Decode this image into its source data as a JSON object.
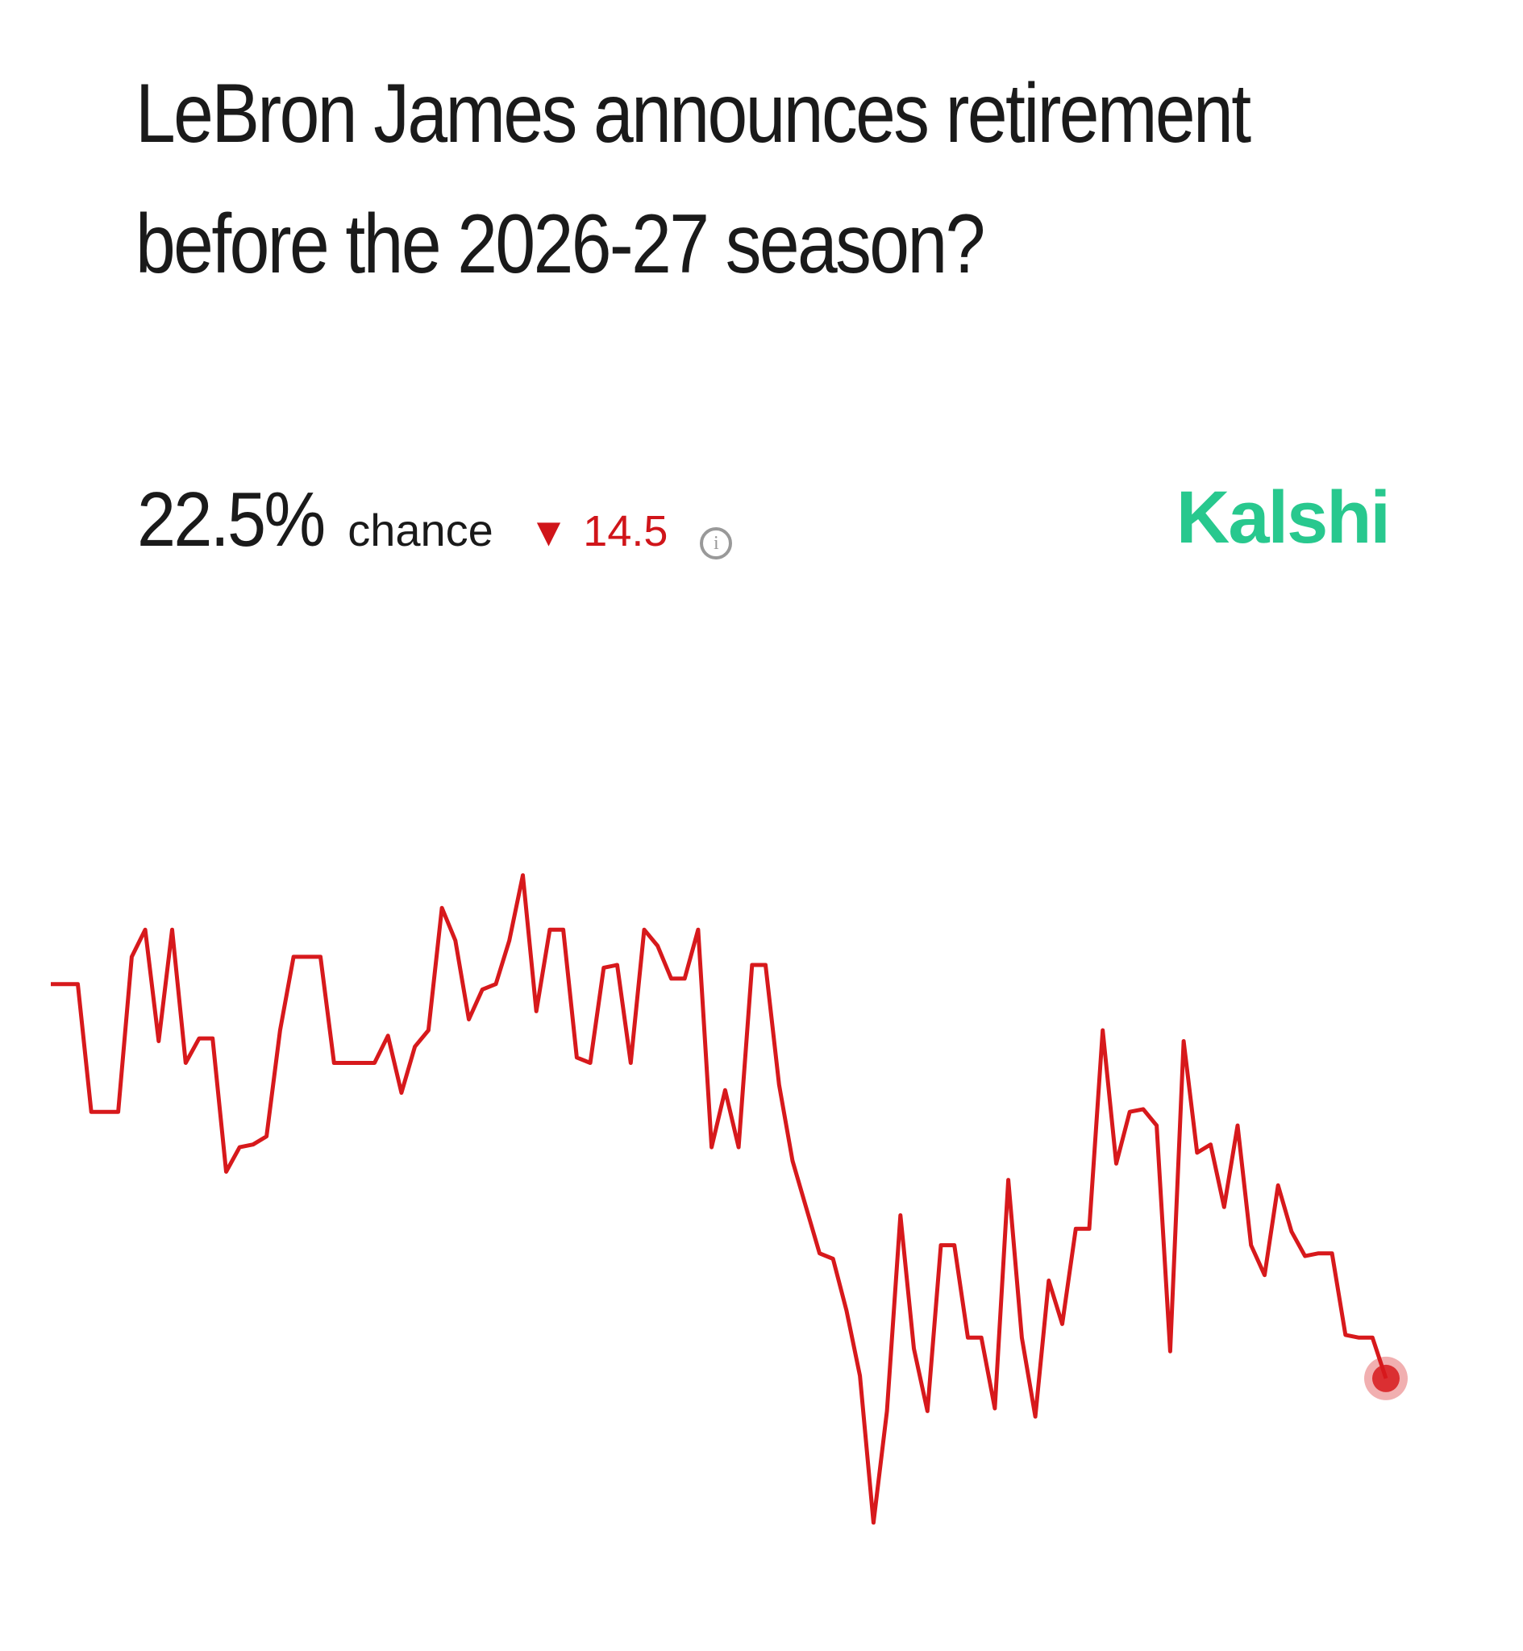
{
  "chart_data": {
    "type": "line",
    "title": "LeBron James announces retirement before the 2026-27 season?",
    "current_label": "22.5%",
    "chance_text": "chance",
    "change": 14.5,
    "source": "Kalshi",
    "color": "#d7191c",
    "ylim": [
      15,
      50
    ],
    "values": [
      37.0,
      37.0,
      37.0,
      32.3,
      32.3,
      32.3,
      38.0,
      39.0,
      34.9,
      39.0,
      34.1,
      35.0,
      35.0,
      30.1,
      31.0,
      31.1,
      31.4,
      35.3,
      38.0,
      38.0,
      38.0,
      34.1,
      34.1,
      34.1,
      34.1,
      35.1,
      33.0,
      34.7,
      35.3,
      39.8,
      38.6,
      35.7,
      36.8,
      37.0,
      38.6,
      41.0,
      36.0,
      39.0,
      39.0,
      34.3,
      34.1,
      37.6,
      37.7,
      34.1,
      39.0,
      38.4,
      37.2,
      37.2,
      39.0,
      31.0,
      33.1,
      31.0,
      37.7,
      37.7,
      33.3,
      30.5,
      28.8,
      27.1,
      26.9,
      25.0,
      22.6,
      17.2,
      21.3,
      28.5,
      23.6,
      21.3,
      27.4,
      27.4,
      24.0,
      24.0,
      21.4,
      29.8,
      24.0,
      21.1,
      26.1,
      24.5,
      28.0,
      28.0,
      35.3,
      30.4,
      32.3,
      32.4,
      31.8,
      23.5,
      34.9,
      30.8,
      31.1,
      28.8,
      31.8,
      27.4,
      26.3,
      29.6,
      27.9,
      27.0,
      27.1,
      27.1,
      24.1,
      24.0,
      24.0,
      22.5
    ]
  }
}
